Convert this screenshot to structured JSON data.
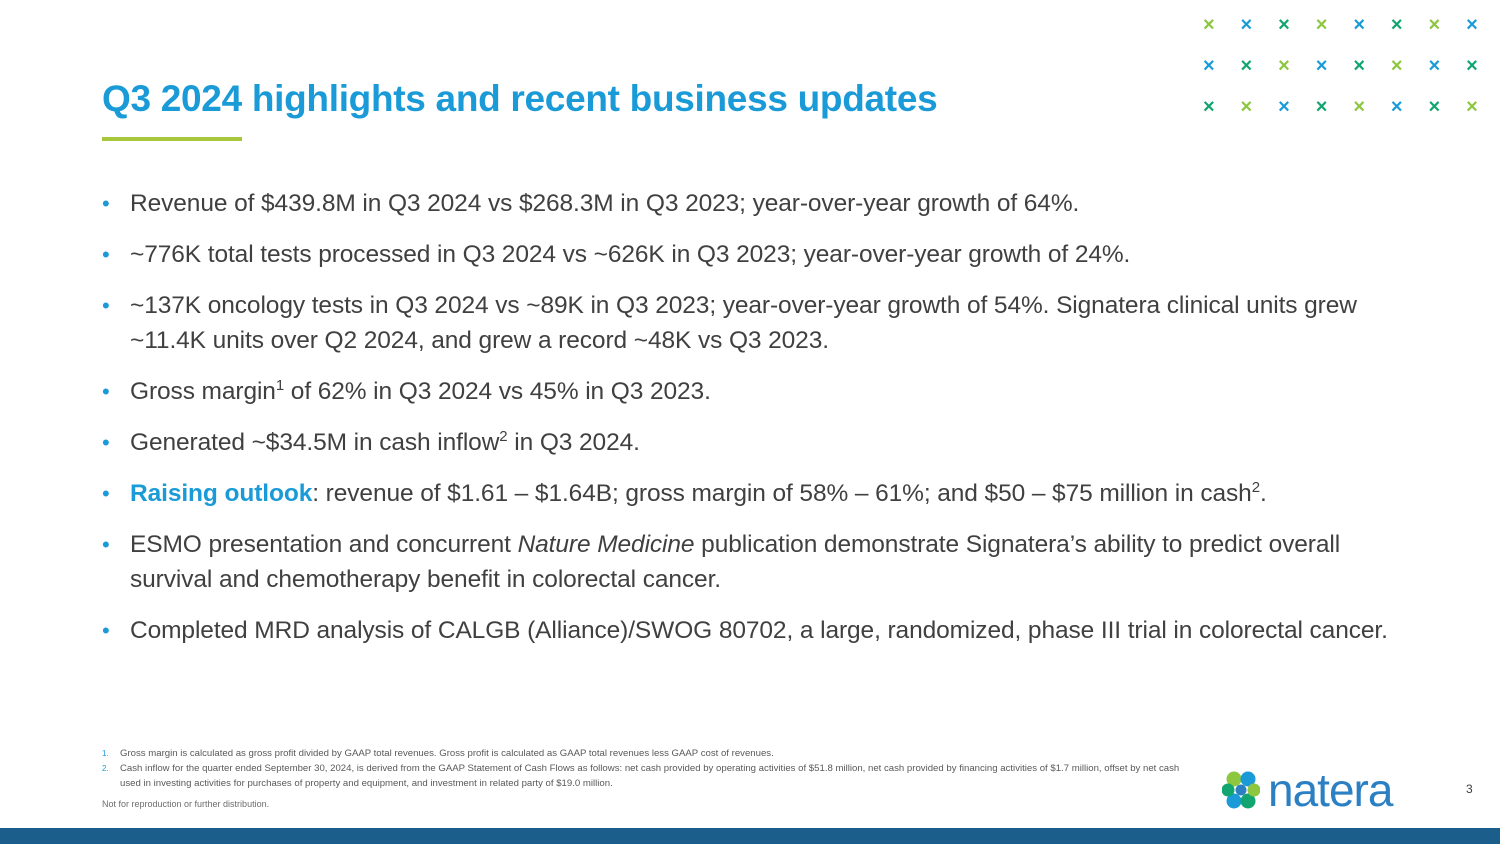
{
  "slide": {
    "title": "Q3 2024 highlights and recent business updates",
    "page_number": "3",
    "disclaimer": "Not for reproduction or further distribution."
  },
  "decoration": {
    "x_glyph": "×",
    "colors": [
      "#8dc63f",
      "#1a9bd7",
      "#13a56f"
    ]
  },
  "bullets": [
    {
      "text": "Revenue of $439.8M in Q3 2024 vs $268.3M in Q3 2023; year-over-year growth of 64%."
    },
    {
      "text": "~776K total tests processed in Q3 2024 vs ~626K in Q3 2023; year-over-year growth of 24%."
    },
    {
      "text": "~137K oncology tests in Q3 2024 vs ~89K in Q3 2023; year-over-year growth of 54%. Signatera clinical units grew ~11.4K units over Q2 2024, and grew a record ~48K vs Q3 2023."
    },
    {
      "pre": "Gross margin",
      "sup": "1",
      "post": " of 62% in Q3 2024 vs 45% in Q3 2023."
    },
    {
      "pre": "Generated ~$34.5M in cash inflow",
      "sup": "2",
      "post": " in Q3 2024."
    },
    {
      "highlight": "Raising outlook",
      "pre": ": revenue of $1.61 – $1.64B; gross margin of 58% – 61%; and $50 – $75 million in cash",
      "sup": "2",
      "post": "."
    },
    {
      "pre": "ESMO presentation and concurrent ",
      "italic": "Nature Medicine",
      "post": " publication demonstrate Signatera’s ability to predict overall survival and chemotherapy benefit in colorectal cancer."
    },
    {
      "text": "Completed MRD analysis of CALGB (Alliance)/SWOG 80702, a large, randomized, phase III trial in colorectal cancer."
    }
  ],
  "footnotes": [
    {
      "num": "1.",
      "text": "Gross margin is calculated as gross profit divided by GAAP total revenues. Gross profit is calculated as GAAP total revenues less GAAP cost of revenues."
    },
    {
      "num": "2.",
      "text": "Cash inflow for the quarter ended September 30, 2024, is derived from the GAAP Statement of Cash Flows as follows: net cash provided by operating activities of $51.8 million, net cash provided by financing activities of $1.7 million, offset by net cash used in investing activities for purchases of property and equipment, and investment in related party of $19.0 million."
    }
  ],
  "logo": {
    "text": "natera"
  }
}
